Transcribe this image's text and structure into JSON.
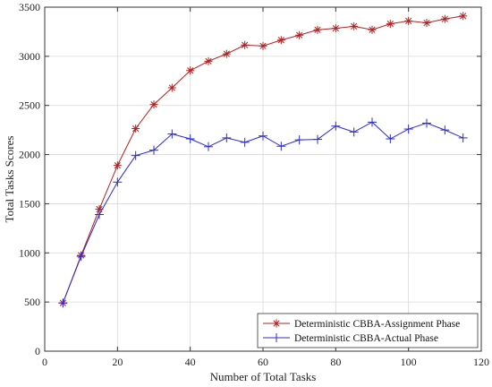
{
  "chart_data": {
    "type": "line",
    "title": "",
    "xlabel": "Number of Total Tasks",
    "ylabel": "Total Tasks Scores",
    "xlim": [
      0,
      120
    ],
    "ylim": [
      0,
      3500
    ],
    "x_ticks": [
      0,
      20,
      40,
      60,
      80,
      100,
      120
    ],
    "y_ticks": [
      0,
      500,
      1000,
      1500,
      2000,
      2500,
      3000,
      3500
    ],
    "grid": true,
    "legend_position": "bottom-right",
    "x": [
      5,
      10,
      15,
      20,
      25,
      30,
      35,
      40,
      45,
      50,
      55,
      60,
      65,
      70,
      75,
      80,
      85,
      90,
      95,
      100,
      105,
      110,
      115
    ],
    "series": [
      {
        "name": "Deterministic CBBA-Assignment Phase",
        "color": "#b22222",
        "marker": "asterisk",
        "values": [
          490,
          975,
          1445,
          1890,
          2265,
          2510,
          2680,
          2855,
          2950,
          3025,
          3115,
          3105,
          3165,
          3215,
          3270,
          3285,
          3305,
          3270,
          3330,
          3360,
          3340,
          3380,
          3410
        ]
      },
      {
        "name": "Deterministic CBBA-Actual Phase",
        "color": "#2b2bd6",
        "marker": "plus",
        "values": [
          490,
          965,
          1390,
          1720,
          1990,
          2045,
          2210,
          2160,
          2080,
          2170,
          2125,
          2190,
          2085,
          2150,
          2155,
          2290,
          2230,
          2330,
          2160,
          2260,
          2320,
          2250,
          2170
        ]
      }
    ]
  }
}
